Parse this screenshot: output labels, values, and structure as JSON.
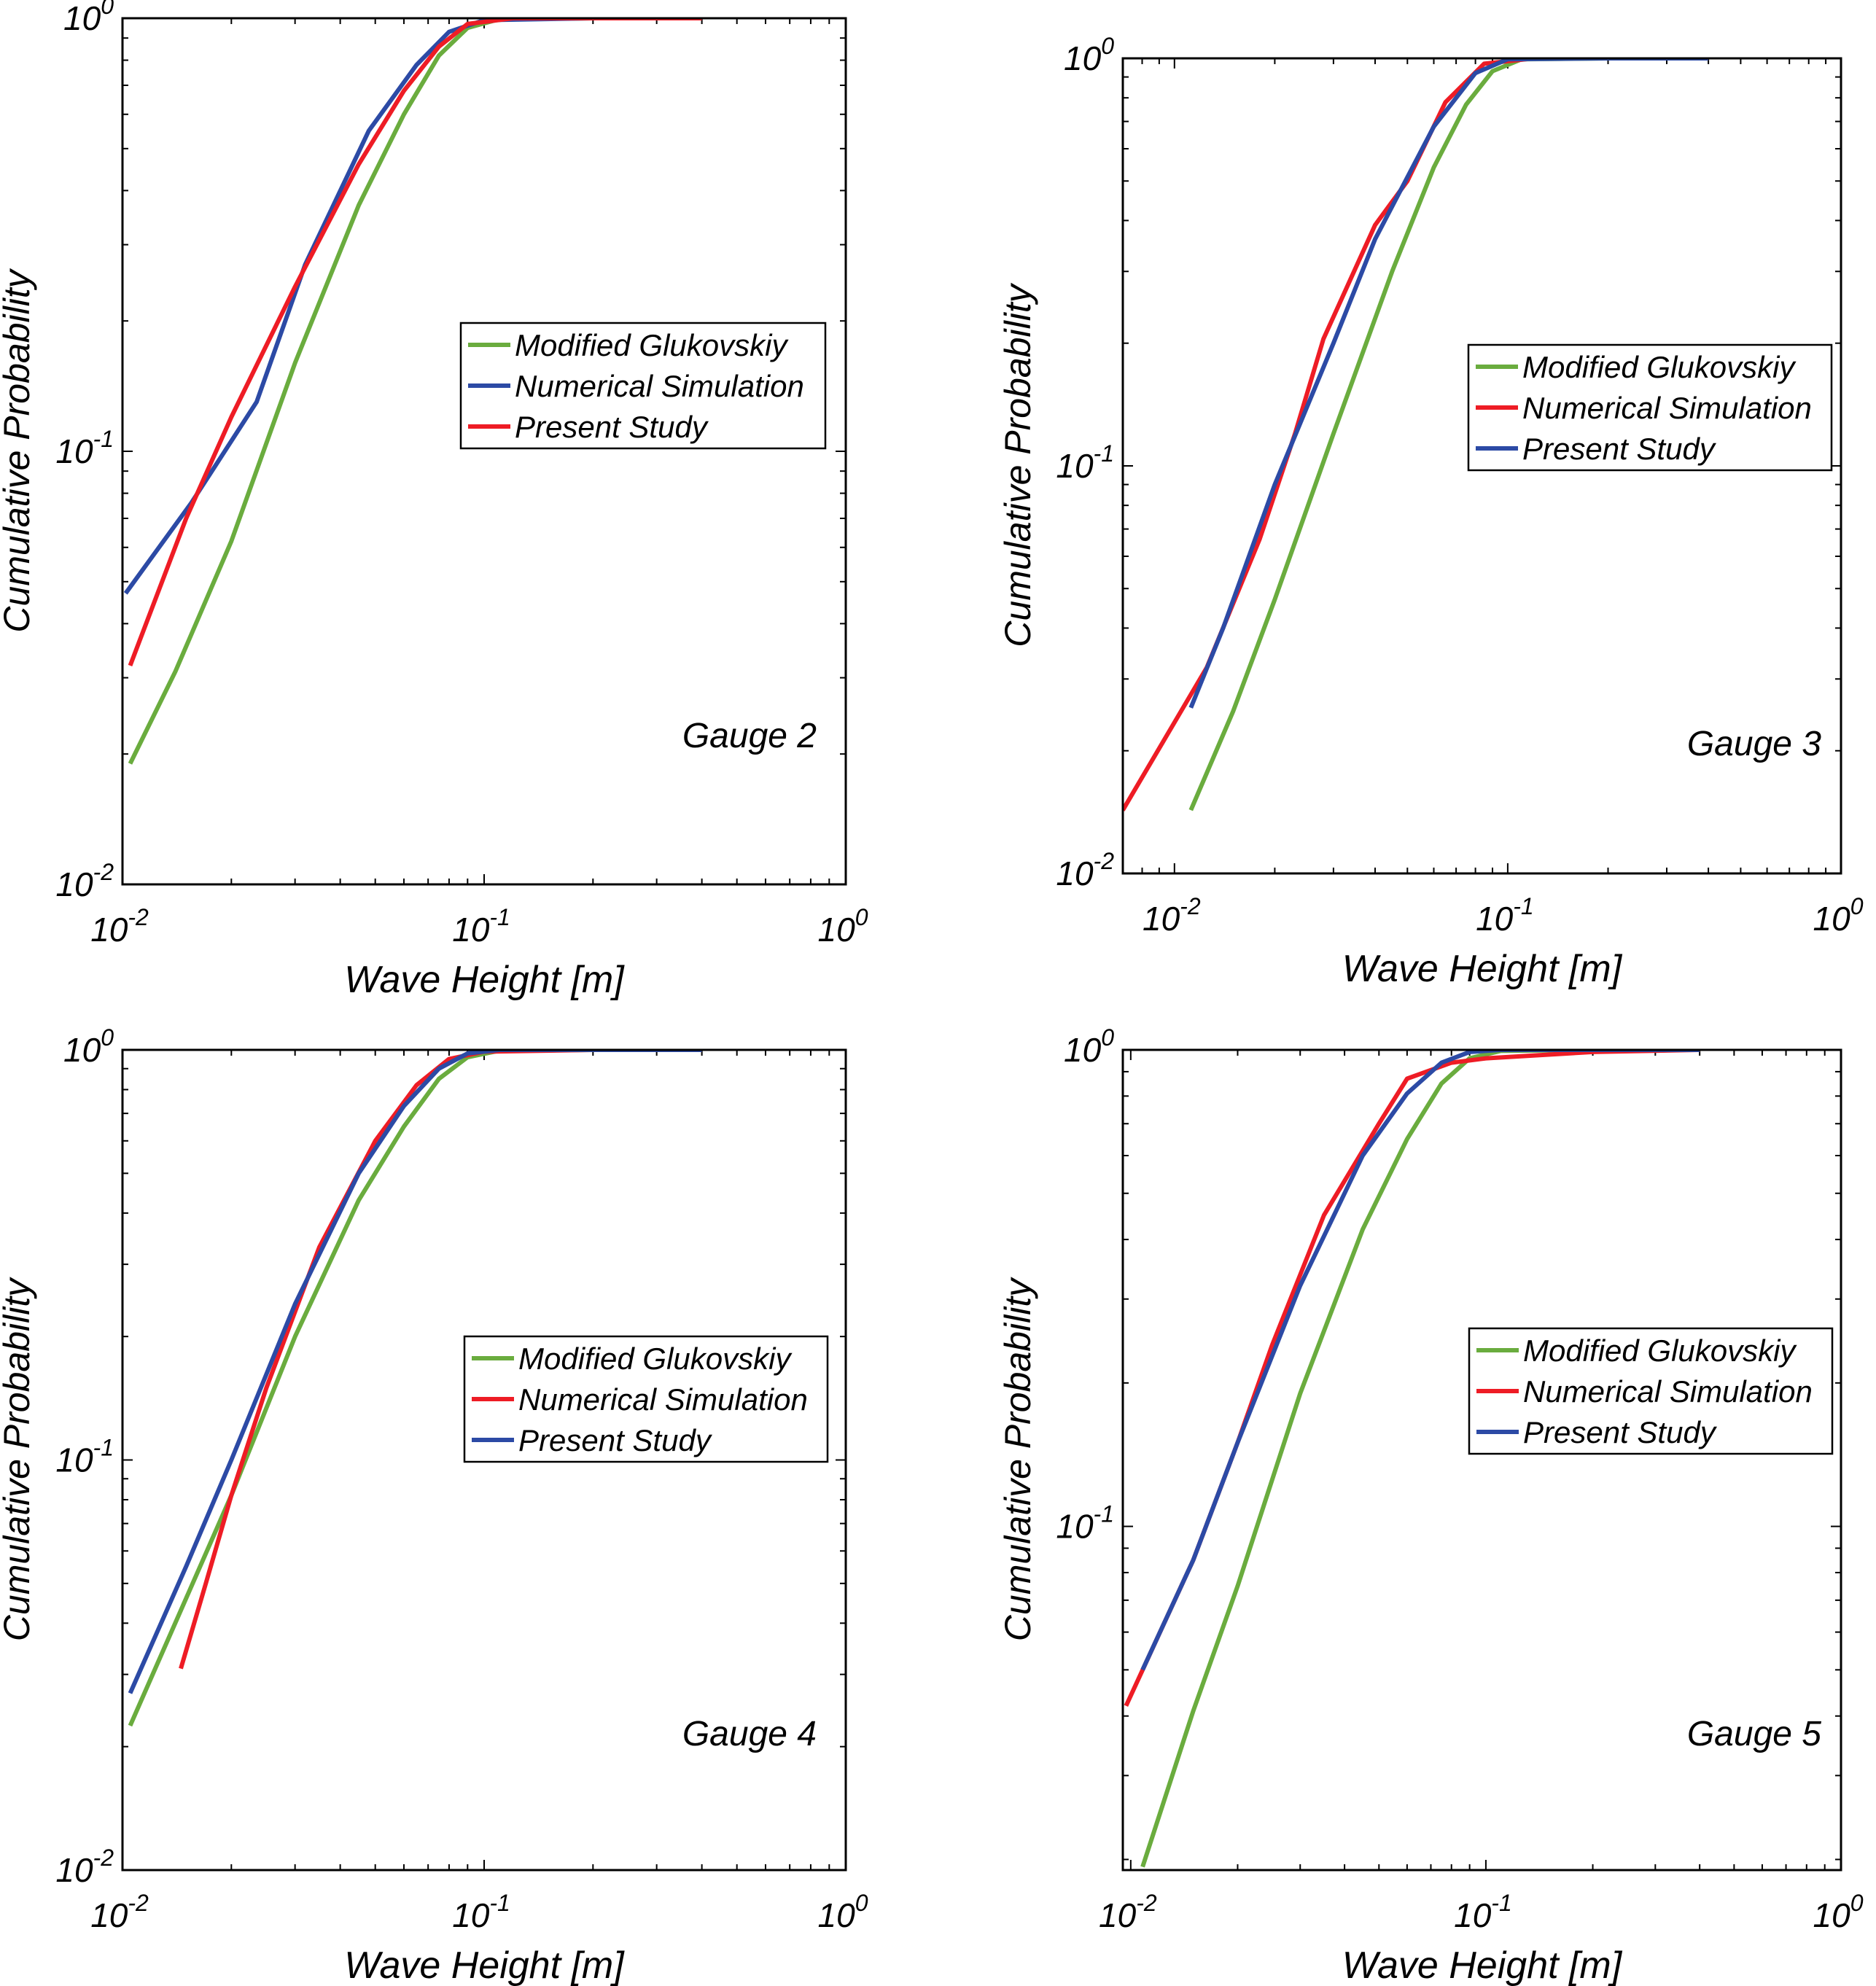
{
  "colors": {
    "green": "#6aac3e",
    "red": "#ee1c25",
    "blue": "#2c4aa5",
    "axis": "#000000"
  },
  "chart_data": [
    {
      "type": "line",
      "annotation": "Gauge 2",
      "xlabel": "Wave Height [m]",
      "ylabel": "Cumulative Probability",
      "xscale": "log",
      "yscale": "log",
      "xlim": [
        0.01,
        1.0
      ],
      "ylim": [
        0.01,
        1.0
      ],
      "x_ticks": [
        {
          "base": "10",
          "exp": "-2"
        },
        {
          "base": "10",
          "exp": "-1"
        },
        {
          "base": "10",
          "exp": "0"
        }
      ],
      "y_ticks": [
        {
          "base": "10",
          "exp": "-2"
        },
        {
          "base": "10",
          "exp": "-1"
        },
        {
          "base": "10",
          "exp": "0"
        }
      ],
      "legend_position": "center-right",
      "series": [
        {
          "name": "Modified Glukovskiy",
          "color": "green",
          "points": [
            [
              0.0105,
              0.019
            ],
            [
              0.014,
              0.031
            ],
            [
              0.02,
              0.062
            ],
            [
              0.03,
              0.16
            ],
            [
              0.045,
              0.37
            ],
            [
              0.06,
              0.6
            ],
            [
              0.075,
              0.82
            ],
            [
              0.09,
              0.95
            ],
            [
              0.11,
              0.995
            ],
            [
              0.2,
              1.0
            ],
            [
              0.4,
              1.0
            ]
          ]
        },
        {
          "name": "Numerical Simulation",
          "color": "blue",
          "points": [
            [
              0.0102,
              0.047
            ],
            [
              0.0155,
              0.076
            ],
            [
              0.0235,
              0.13
            ],
            [
              0.032,
              0.27
            ],
            [
              0.048,
              0.55
            ],
            [
              0.065,
              0.78
            ],
            [
              0.08,
              0.93
            ],
            [
              0.1,
              0.99
            ],
            [
              0.2,
              1.0
            ],
            [
              0.4,
              1.0
            ]
          ]
        },
        {
          "name": "Present Study",
          "color": "red",
          "points": [
            [
              0.0105,
              0.032
            ],
            [
              0.015,
              0.07
            ],
            [
              0.02,
              0.12
            ],
            [
              0.03,
              0.24
            ],
            [
              0.045,
              0.46
            ],
            [
              0.06,
              0.68
            ],
            [
              0.075,
              0.86
            ],
            [
              0.09,
              0.97
            ],
            [
              0.12,
              1.0
            ],
            [
              0.2,
              1.0
            ],
            [
              0.4,
              1.0
            ]
          ]
        }
      ]
    },
    {
      "type": "line",
      "annotation": "Gauge 3",
      "xlabel": "Wave Height [m]",
      "ylabel": "Cumulative Probability",
      "xscale": "log",
      "yscale": "log",
      "xlim": [
        0.007,
        1.0
      ],
      "ylim": [
        0.01,
        1.0
      ],
      "x_ticks": [
        {
          "base": "10",
          "exp": "-2"
        },
        {
          "base": "10",
          "exp": "-1"
        },
        {
          "base": "10",
          "exp": "0"
        }
      ],
      "y_ticks": [
        {
          "base": "10",
          "exp": "-2"
        },
        {
          "base": "10",
          "exp": "-1"
        },
        {
          "base": "10",
          "exp": "0"
        }
      ],
      "legend_position": "center-right",
      "series": [
        {
          "name": "Modified Glukovskiy",
          "color": "green",
          "points": [
            [
              0.0112,
              0.0143
            ],
            [
              0.015,
              0.025
            ],
            [
              0.02,
              0.047
            ],
            [
              0.03,
              0.12
            ],
            [
              0.045,
              0.3
            ],
            [
              0.06,
              0.54
            ],
            [
              0.075,
              0.77
            ],
            [
              0.09,
              0.93
            ],
            [
              0.11,
              0.995
            ],
            [
              0.2,
              1.0
            ],
            [
              0.4,
              1.0
            ]
          ]
        },
        {
          "name": "Numerical Simulation",
          "color": "red",
          "points": [
            [
              0.007,
              0.0143
            ],
            [
              0.0125,
              0.032
            ],
            [
              0.018,
              0.066
            ],
            [
              0.023,
              0.12
            ],
            [
              0.028,
              0.205
            ],
            [
              0.04,
              0.39
            ],
            [
              0.05,
              0.5
            ],
            [
              0.065,
              0.78
            ],
            [
              0.085,
              0.97
            ],
            [
              0.12,
              1.0
            ],
            [
              0.2,
              1.0
            ],
            [
              0.4,
              1.0
            ]
          ]
        },
        {
          "name": "Present Study",
          "color": "blue",
          "points": [
            [
              0.0112,
              0.0255
            ],
            [
              0.014,
              0.04
            ],
            [
              0.02,
              0.09
            ],
            [
              0.03,
              0.2
            ],
            [
              0.04,
              0.36
            ],
            [
              0.06,
              0.68
            ],
            [
              0.08,
              0.92
            ],
            [
              0.1,
              0.995
            ],
            [
              0.2,
              1.0
            ],
            [
              0.4,
              1.0
            ]
          ]
        }
      ]
    },
    {
      "type": "line",
      "annotation": "Gauge 4",
      "xlabel": "Wave Height [m]",
      "ylabel": "Cumulative Probability",
      "xscale": "log",
      "yscale": "log",
      "xlim": [
        0.01,
        1.0
      ],
      "ylim": [
        0.01,
        1.0
      ],
      "x_ticks": [
        {
          "base": "10",
          "exp": "-2"
        },
        {
          "base": "10",
          "exp": "-1"
        },
        {
          "base": "10",
          "exp": "0"
        }
      ],
      "y_ticks": [
        {
          "base": "10",
          "exp": "-2"
        },
        {
          "base": "10",
          "exp": "-1"
        },
        {
          "base": "10",
          "exp": "0"
        }
      ],
      "legend_position": "center-right",
      "series": [
        {
          "name": "Modified Glukovskiy",
          "color": "green",
          "points": [
            [
              0.0105,
              0.0225
            ],
            [
              0.015,
              0.046
            ],
            [
              0.02,
              0.082
            ],
            [
              0.03,
              0.2
            ],
            [
              0.045,
              0.43
            ],
            [
              0.06,
              0.65
            ],
            [
              0.075,
              0.85
            ],
            [
              0.09,
              0.96
            ],
            [
              0.11,
              0.995
            ],
            [
              0.2,
              1.0
            ],
            [
              0.4,
              1.0
            ]
          ]
        },
        {
          "name": "Numerical Simulation",
          "color": "red",
          "points": [
            [
              0.0145,
              0.031
            ],
            [
              0.017,
              0.05
            ],
            [
              0.02,
              0.082
            ],
            [
              0.025,
              0.15
            ],
            [
              0.035,
              0.33
            ],
            [
              0.05,
              0.6
            ],
            [
              0.065,
              0.82
            ],
            [
              0.08,
              0.95
            ],
            [
              0.1,
              0.99
            ],
            [
              0.2,
              1.0
            ],
            [
              0.4,
              1.0
            ]
          ]
        },
        {
          "name": "Present Study",
          "color": "blue",
          "points": [
            [
              0.0105,
              0.027
            ],
            [
              0.015,
              0.055
            ],
            [
              0.02,
              0.1
            ],
            [
              0.03,
              0.24
            ],
            [
              0.045,
              0.5
            ],
            [
              0.06,
              0.73
            ],
            [
              0.075,
              0.9
            ],
            [
              0.09,
              0.98
            ],
            [
              0.11,
              1.0
            ],
            [
              0.2,
              1.0
            ],
            [
              0.4,
              1.0
            ]
          ]
        }
      ]
    },
    {
      "type": "line",
      "annotation": "Gauge 5",
      "xlabel": "Wave Height [m]",
      "ylabel": "Cumulative Probability",
      "xscale": "log",
      "yscale": "log",
      "xlim": [
        0.0095,
        1.0
      ],
      "ylim": [
        0.019,
        1.0
      ],
      "x_ticks": [
        {
          "base": "10",
          "exp": "-2"
        },
        {
          "base": "10",
          "exp": "-1"
        },
        {
          "base": "10",
          "exp": "0"
        }
      ],
      "y_ticks": [
        {
          "base": "10",
          "exp": "-1"
        },
        {
          "base": "10",
          "exp": "0"
        }
      ],
      "legend_position": "center-right",
      "series": [
        {
          "name": "Modified Glukovskiy",
          "color": "green",
          "points": [
            [
              0.0108,
              0.0193
            ],
            [
              0.015,
              0.041
            ],
            [
              0.02,
              0.075
            ],
            [
              0.03,
              0.19
            ],
            [
              0.045,
              0.42
            ],
            [
              0.06,
              0.65
            ],
            [
              0.075,
              0.85
            ],
            [
              0.09,
              0.96
            ],
            [
              0.11,
              0.995
            ],
            [
              0.2,
              1.0
            ],
            [
              0.4,
              1.0
            ]
          ]
        },
        {
          "name": "Numerical Simulation",
          "color": "red",
          "points": [
            [
              0.0097,
              0.042
            ],
            [
              0.015,
              0.085
            ],
            [
              0.02,
              0.15
            ],
            [
              0.025,
              0.24
            ],
            [
              0.035,
              0.45
            ],
            [
              0.05,
              0.7
            ],
            [
              0.06,
              0.87
            ],
            [
              0.08,
              0.94
            ],
            [
              0.1,
              0.96
            ],
            [
              0.2,
              0.99
            ],
            [
              0.4,
              1.0
            ]
          ]
        },
        {
          "name": "Present Study",
          "color": "blue",
          "points": [
            [
              0.0108,
              0.05
            ],
            [
              0.015,
              0.085
            ],
            [
              0.02,
              0.15
            ],
            [
              0.03,
              0.32
            ],
            [
              0.045,
              0.6
            ],
            [
              0.06,
              0.81
            ],
            [
              0.075,
              0.94
            ],
            [
              0.09,
              0.99
            ],
            [
              0.11,
              1.0
            ],
            [
              0.2,
              1.0
            ],
            [
              0.4,
              1.0
            ]
          ]
        }
      ]
    }
  ]
}
